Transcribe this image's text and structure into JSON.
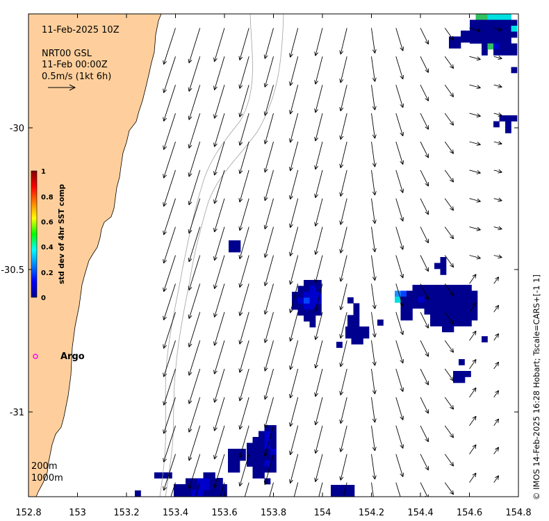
{
  "header": {
    "timestamp": "11-Feb-2025 10Z",
    "source": "NRT00 GSL",
    "valid_time": "11-Feb 00:00Z",
    "speed_scale": "0.5m/s (1kt 6h)"
  },
  "colorbar": {
    "title": "std dev of 4hr SST comp",
    "ticks": [
      "1",
      "0.8",
      "0.6",
      "0.4",
      "0.2",
      "0"
    ]
  },
  "argo": {
    "label": "Argo",
    "marker_color": "#ff00ff"
  },
  "contours": {
    "shallow": "200m",
    "deep": "1000m"
  },
  "credit": "© IMOS 14-Feb-2025 16:28 Hobart; Tscale=CARS+[-1 1]",
  "axes": {
    "lon_ticks": [
      "152.8",
      "153",
      "153.2",
      "153.4",
      "153.6",
      "153.8",
      "154",
      "154.2",
      "154.4",
      "154.6",
      "154.8"
    ],
    "lat_ticks": [
      "-30",
      "-30.5",
      "-31"
    ],
    "lon_range": [
      152.8,
      154.8
    ],
    "lat_range": [
      -31.3,
      -29.6
    ]
  },
  "colors": {
    "land": "#fecf9c",
    "contour": "#a0a0a0",
    "vector": "#000000"
  },
  "chart_data": {
    "type": "map",
    "current_vectors": {
      "lon": [
        153.4,
        153.5,
        153.6,
        153.7,
        153.8,
        153.9,
        154.0,
        154.1,
        154.2,
        154.3,
        154.4,
        154.5,
        154.6,
        154.7
      ],
      "lat": [
        -29.65,
        -29.75,
        -29.85,
        -29.95,
        -30.05,
        -30.15,
        -30.25,
        -30.35,
        -30.45,
        -30.55,
        -30.65,
        -30.75,
        -30.85,
        -30.95,
        -31.05,
        -31.15,
        -31.25
      ]
    }
  }
}
